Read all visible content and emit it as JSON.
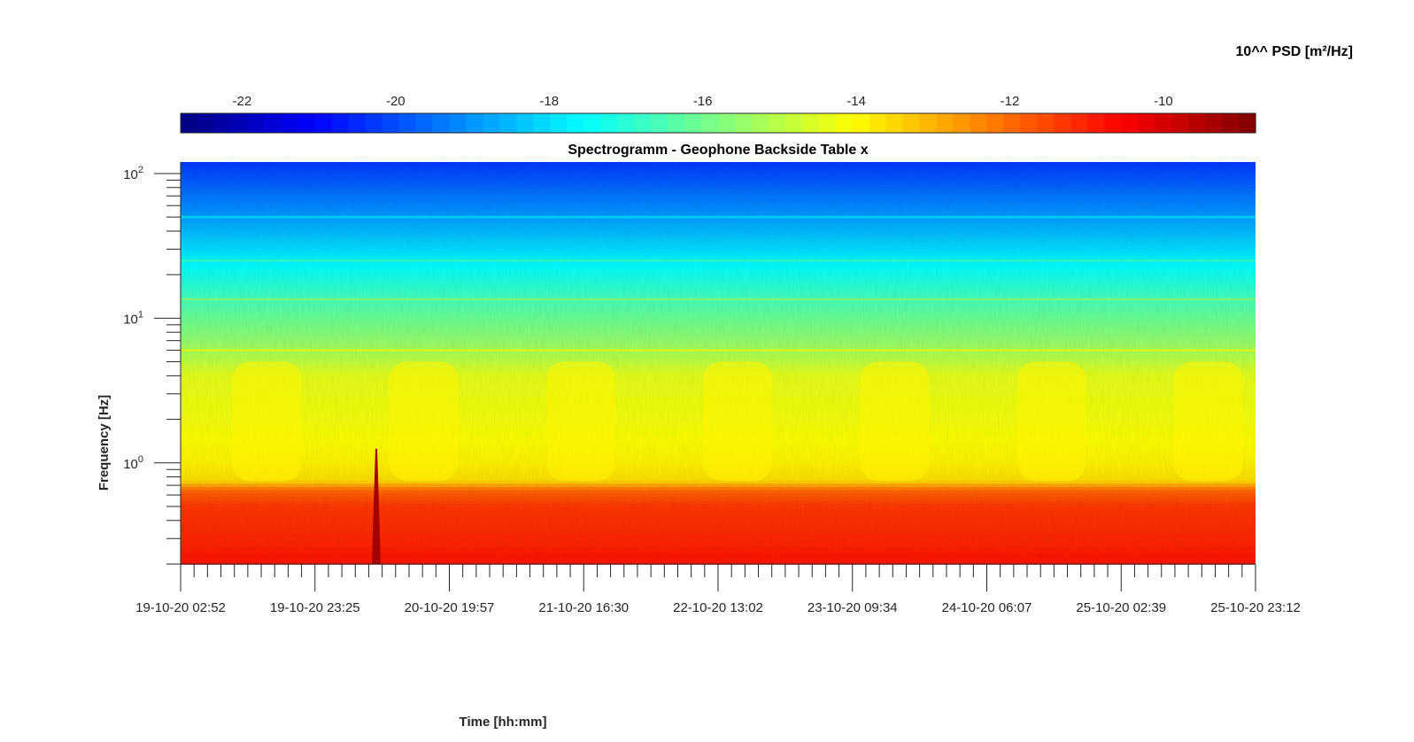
{
  "chart_data": {
    "type": "heatmap",
    "title": "Spectrogramm - Geophone Backside Table x",
    "xlabel": "Time [hh:mm]",
    "ylabel": "Frequency [Hz]",
    "y_scale": "log",
    "ylim": [
      0.2,
      120
    ],
    "y_ticks": [
      {
        "value": 100,
        "base": "10",
        "exp": "2"
      },
      {
        "value": 10,
        "base": "10",
        "exp": "1"
      },
      {
        "value": 1,
        "base": "10",
        "exp": "0"
      }
    ],
    "x_tick_labels": [
      "19-10-20 02:52",
      "19-10-20 23:25",
      "20-10-20 19:57",
      "21-10-20 16:30",
      "22-10-20 13:02",
      "23-10-20 09:34",
      "24-10-20 06:07",
      "25-10-20 02:39",
      "25-10-20 23:12"
    ],
    "colorbar": {
      "label": "10^^ PSD [m²/Hz]",
      "colormap": "jet",
      "range": [
        -22.8,
        -8.8
      ],
      "ticks": [
        "-22",
        "-20",
        "-18",
        "-16",
        "-14",
        "-12",
        "-10"
      ],
      "tick_values": [
        -22,
        -20,
        -18,
        -16,
        -14,
        -12,
        -10
      ]
    },
    "z_profile_by_frequency": {
      "frequency_hz": [
        0.2,
        0.3,
        0.5,
        0.65,
        0.75,
        1.0,
        2.0,
        4.0,
        6.0,
        10.0,
        20.0,
        50.0,
        100.0,
        120.0
      ],
      "log10_psd": [
        -10.8,
        -11.1,
        -11.3,
        -12.0,
        -13.6,
        -13.9,
        -14.2,
        -14.4,
        -15.3,
        -16.1,
        -17.3,
        -18.9,
        -20.0,
        -20.3
      ]
    },
    "spectral_lines_hz": [
      6.0,
      13.5,
      25.0,
      50.0
    ],
    "transient_event": {
      "time": "20-10-20 ~06:30",
      "log10_psd": -9.3
    }
  }
}
